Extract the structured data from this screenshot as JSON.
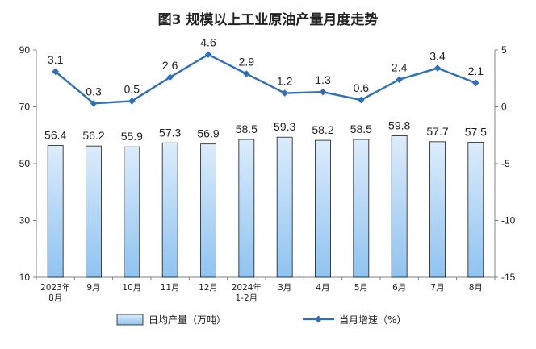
{
  "chart_data": {
    "type": "bar+line",
    "title": "图3  规模以上工业原油产量月度走势",
    "categories": [
      [
        "2023年",
        "8月"
      ],
      [
        "9月"
      ],
      [
        "10月"
      ],
      [
        "11月"
      ],
      [
        "12月"
      ],
      [
        "2024年",
        "1-2月"
      ],
      [
        "3月"
      ],
      [
        "4月"
      ],
      [
        "5月"
      ],
      [
        "6月"
      ],
      [
        "7月"
      ],
      [
        "8月"
      ]
    ],
    "bar_series": {
      "name": "日均产量（万吨）",
      "axis": "left",
      "values": [
        56.4,
        56.2,
        55.9,
        57.3,
        56.9,
        58.5,
        59.3,
        58.2,
        58.5,
        59.8,
        57.7,
        57.5
      ],
      "labels": [
        "56.4",
        "56.2",
        "55.9",
        "57.3",
        "56.9",
        "58.5",
        "59.3",
        "58.2",
        "58.5",
        "59.8",
        "57.7",
        "57.5"
      ]
    },
    "line_series": {
      "name": "当月增速（%）",
      "axis": "right",
      "values": [
        3.1,
        0.3,
        0.5,
        2.6,
        4.6,
        2.9,
        1.2,
        1.3,
        0.6,
        2.4,
        3.4,
        2.1
      ],
      "labels": [
        "3.1",
        "0.3",
        "0.5",
        "2.6",
        "4.6",
        "2.9",
        "1.2",
        "1.3",
        "0.6",
        "2.4",
        "3.4",
        "2.1"
      ]
    },
    "left_axis": {
      "min": 10,
      "max": 90,
      "ticks": [
        "90",
        "70",
        "50",
        "30",
        "10"
      ],
      "tick_values": [
        90,
        70,
        50,
        30,
        10
      ]
    },
    "right_axis": {
      "min": -15,
      "max": 5,
      "ticks": [
        "5",
        "0",
        "-5",
        "-10",
        "-15"
      ],
      "tick_values": [
        5,
        0,
        -5,
        -10,
        -15
      ]
    },
    "grid": false,
    "legend_position": "bottom",
    "colors": {
      "bar_fill_top": "#dcecfb",
      "bar_fill_bottom": "#8fc3f0",
      "bar_stroke": "#1a1a1a",
      "line": "#2e6fb7",
      "axis": "#808080"
    }
  }
}
